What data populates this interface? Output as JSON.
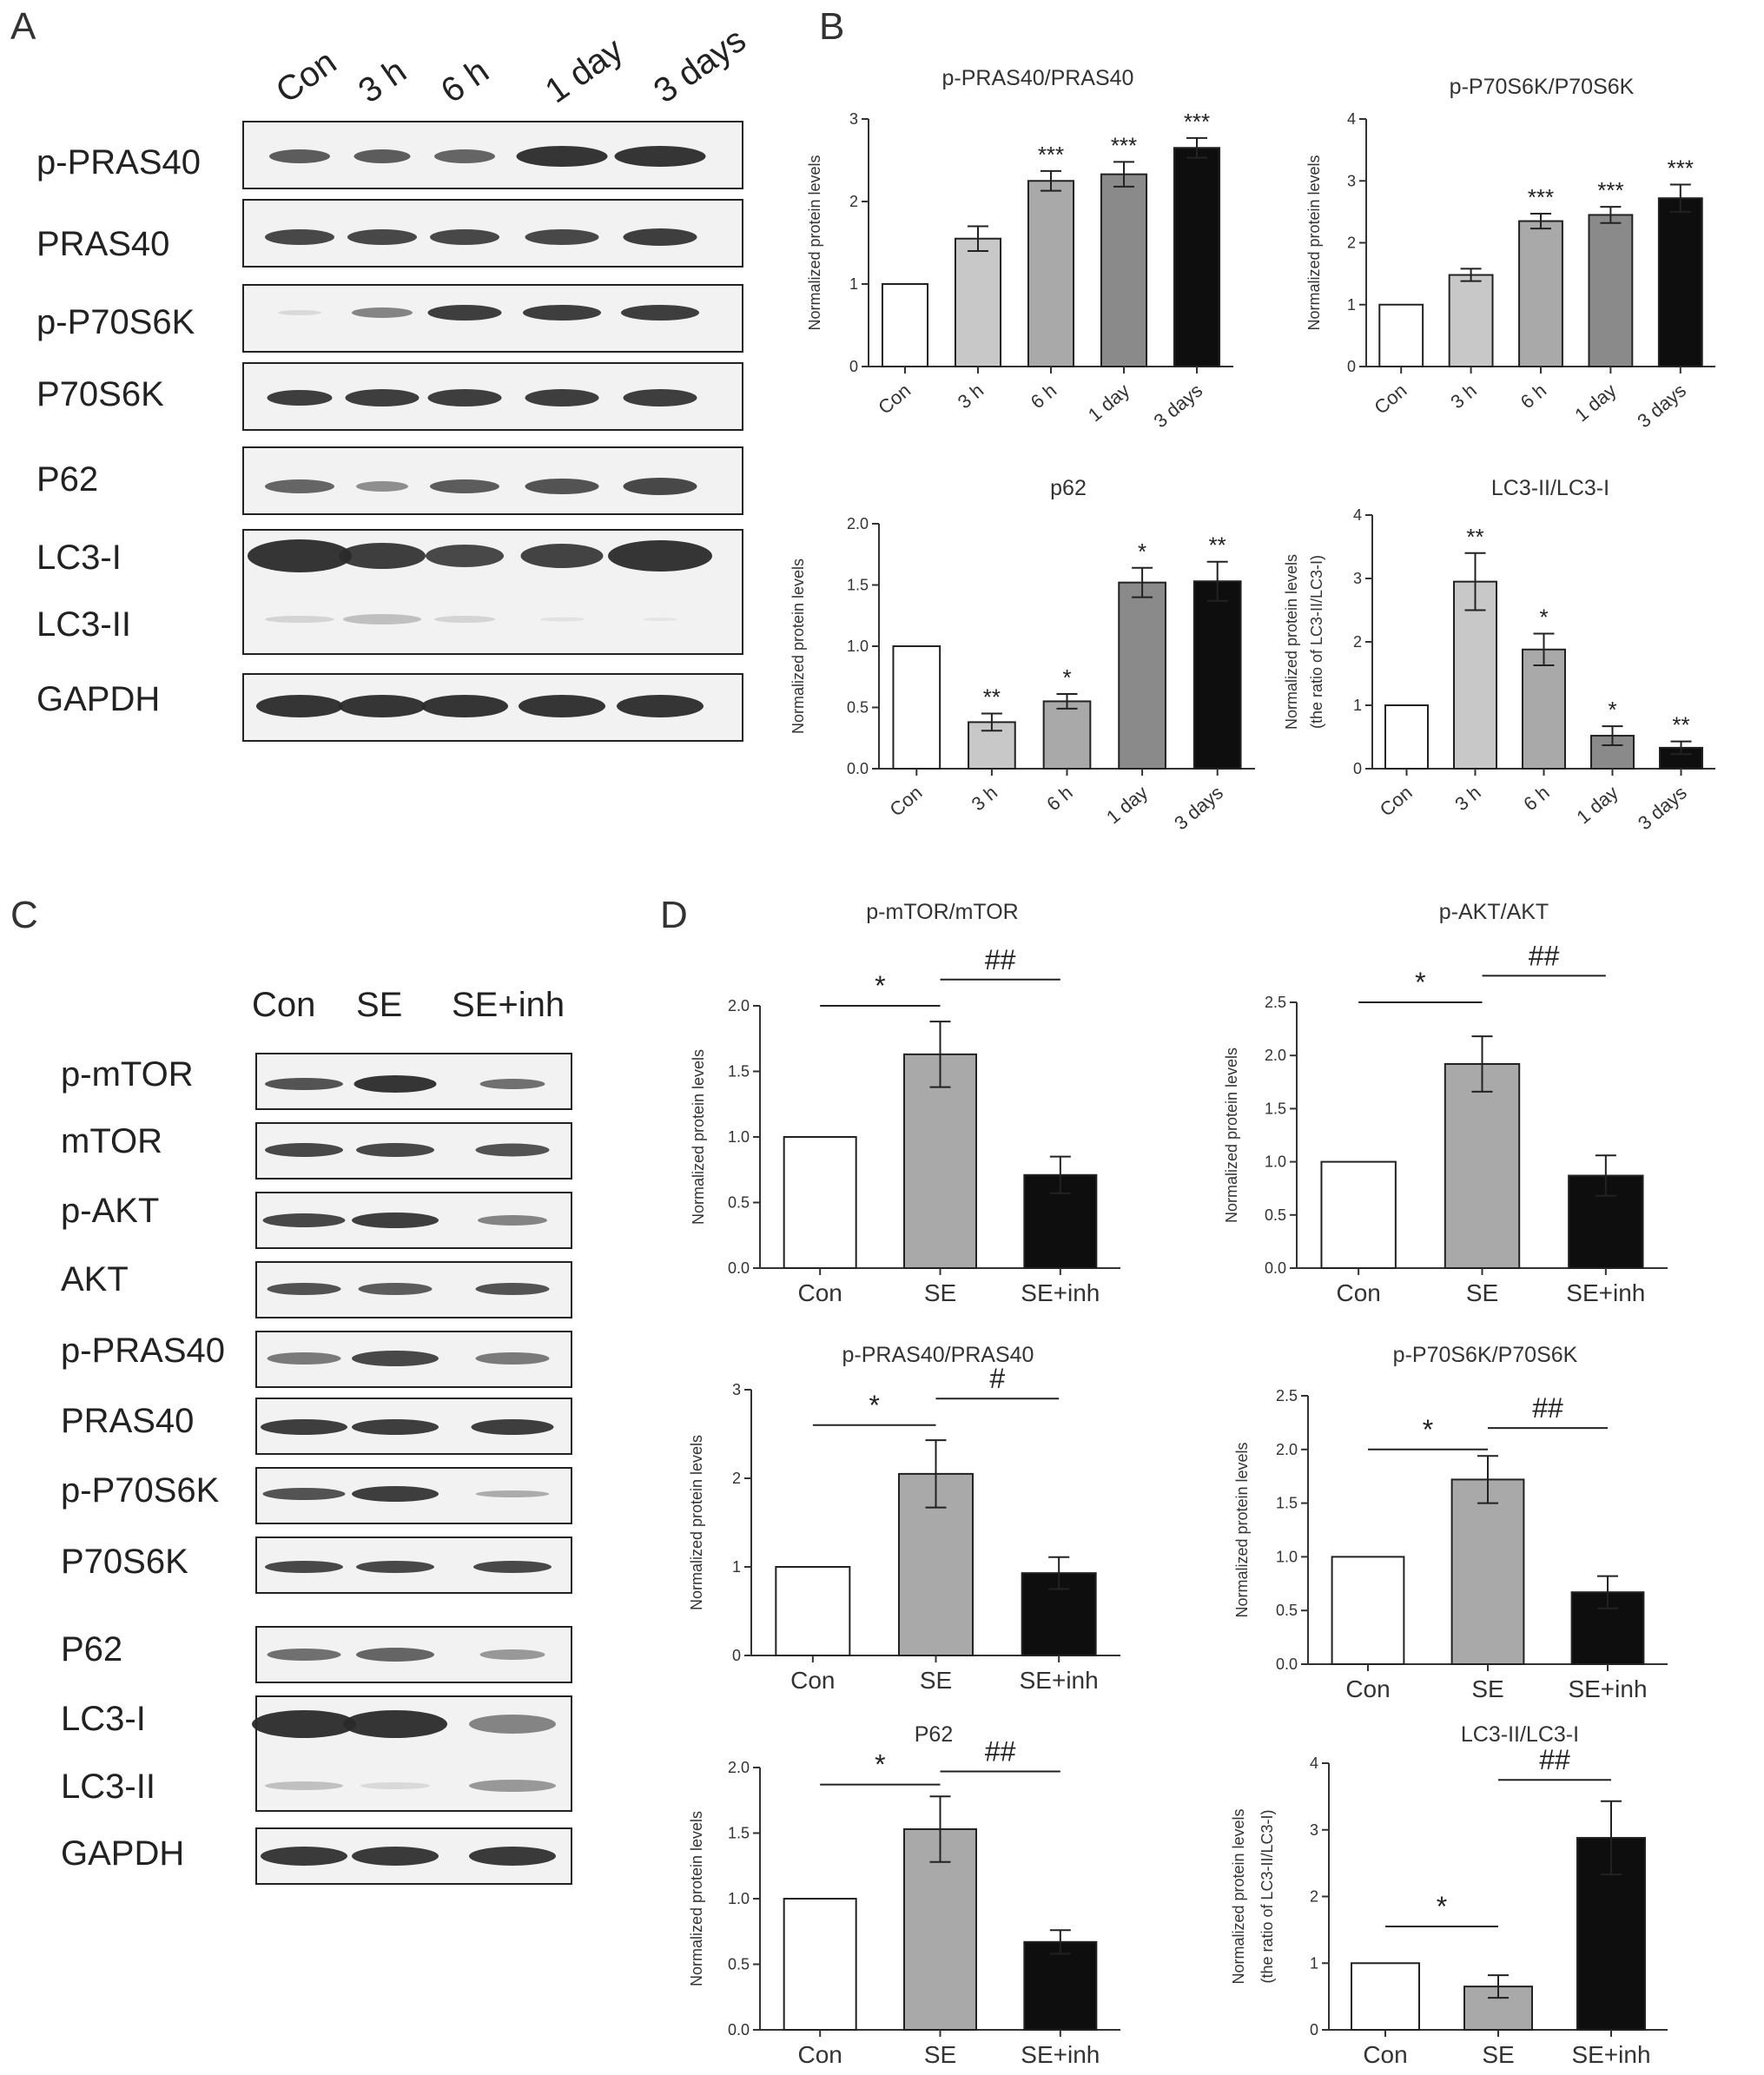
{
  "colors": {
    "con": "#ffffff",
    "t3h": "#c8c8c8",
    "t6h": "#a9a9a9",
    "t1d": "#8a8a8a",
    "t3d": "#0e0e0e",
    "se": "#a9a9a9",
    "seinh": "#0e0e0e",
    "axis": "#333333",
    "blot_bg": "#f2f2f2",
    "band": "#2a2a2a"
  },
  "panels": {
    "A": "A",
    "B": "B",
    "C": "C",
    "D": "D"
  },
  "blot_A": {
    "lanes": [
      "Con",
      "3 h",
      "6 h",
      "1 day",
      "3 days"
    ],
    "rows": [
      "p-PRAS40",
      "PRAS40",
      "p-P70S6K",
      "P70S6K",
      "P62",
      "LC3-I",
      "LC3-II",
      "GAPDH"
    ]
  },
  "blot_C": {
    "lanes": [
      "Con",
      "SE",
      "SE+inh"
    ],
    "rows": [
      "p-mTOR",
      "mTOR",
      "p-AKT",
      "AKT",
      "p-PRAS40",
      "PRAS40",
      "p-P70S6K",
      "P70S6K",
      "P62",
      "LC3-I",
      "LC3-II",
      "GAPDH"
    ]
  },
  "chart_data": [
    {
      "id": "B1",
      "type": "bar",
      "title": "p-PRAS40/PRAS40",
      "ylabel": "Normalized protein levels",
      "ylim": [
        0,
        3
      ],
      "yticks": [
        "0",
        "1",
        "2",
        "3"
      ],
      "categories": [
        "Con",
        "3 h",
        "6 h",
        "1 day",
        "3 days"
      ],
      "values": [
        1.0,
        1.55,
        2.25,
        2.33,
        2.65
      ],
      "errors": [
        0,
        0.15,
        0.12,
        0.15,
        0.12
      ],
      "annotations": [
        "",
        "",
        "***",
        "***",
        "***"
      ]
    },
    {
      "id": "B2",
      "type": "bar",
      "title": "p-P70S6K/P70S6K",
      "ylabel": "Normalized protein levels",
      "ylim": [
        0,
        4
      ],
      "yticks": [
        "0",
        "1",
        "2",
        "3",
        "4"
      ],
      "categories": [
        "Con",
        "3 h",
        "6 h",
        "1 day",
        "3 days"
      ],
      "values": [
        1.0,
        1.48,
        2.35,
        2.45,
        2.72
      ],
      "errors": [
        0,
        0.1,
        0.12,
        0.13,
        0.22
      ],
      "annotations": [
        "",
        "",
        "***",
        "***",
        "***"
      ]
    },
    {
      "id": "B3",
      "type": "bar",
      "title": "p62",
      "ylabel": "Normalized protein levels",
      "ylim": [
        0,
        2.0
      ],
      "yticks": [
        "0.0",
        "0.5",
        "1.0",
        "1.5",
        "2.0"
      ],
      "categories": [
        "Con",
        "3 h",
        "6 h",
        "1 day",
        "3 days"
      ],
      "values": [
        1.0,
        0.38,
        0.55,
        1.52,
        1.53
      ],
      "errors": [
        0,
        0.07,
        0.06,
        0.12,
        0.16
      ],
      "annotations": [
        "",
        "**",
        "*",
        "*",
        "**"
      ]
    },
    {
      "id": "B4",
      "type": "bar",
      "title": "LC3-II/LC3-I",
      "ylabel": "Normalized protein levels",
      "ylabel2": "(the ratio of LC3-II/LC3-I)",
      "ylim": [
        0,
        4
      ],
      "yticks": [
        "0",
        "1",
        "2",
        "3",
        "4"
      ],
      "categories": [
        "Con",
        "3 h",
        "6 h",
        "1 day",
        "3 days"
      ],
      "values": [
        1.0,
        2.95,
        1.88,
        0.52,
        0.33
      ],
      "errors": [
        0,
        0.45,
        0.25,
        0.15,
        0.1
      ],
      "annotations": [
        "",
        "**",
        "*",
        "*",
        "**"
      ]
    },
    {
      "id": "D1",
      "type": "bar",
      "title": "p-mTOR/mTOR",
      "ylabel": "Normalized protein levels",
      "ylim": [
        0,
        2.0
      ],
      "yticks": [
        "0.0",
        "0.5",
        "1.0",
        "1.5",
        "2.0"
      ],
      "categories": [
        "Con",
        "SE",
        "SE+inh"
      ],
      "values": [
        1.0,
        1.63,
        0.71
      ],
      "errors": [
        0,
        0.25,
        0.14
      ],
      "comparisons": [
        {
          "from": 0,
          "to": 1,
          "label": "*",
          "y": 2.0
        },
        {
          "from": 1,
          "to": 2,
          "label": "##",
          "y": 2.2
        }
      ]
    },
    {
      "id": "D2",
      "type": "bar",
      "title": "p-AKT/AKT",
      "ylabel": "Normalized protein levels",
      "ylim": [
        0,
        2.5
      ],
      "yticks": [
        "0.0",
        "0.5",
        "1.0",
        "1.5",
        "2.0",
        "2.5"
      ],
      "categories": [
        "Con",
        "SE",
        "SE+inh"
      ],
      "values": [
        1.0,
        1.92,
        0.87
      ],
      "errors": [
        0,
        0.26,
        0.19
      ],
      "comparisons": [
        {
          "from": 0,
          "to": 1,
          "label": "*",
          "y": 2.5
        },
        {
          "from": 1,
          "to": 2,
          "label": "##",
          "y": 2.75
        }
      ]
    },
    {
      "id": "D3",
      "type": "bar",
      "title": "p-PRAS40/PRAS40",
      "ylabel": "Normalized protein levels",
      "ylim": [
        0,
        3
      ],
      "yticks": [
        "0",
        "1",
        "2",
        "3"
      ],
      "categories": [
        "Con",
        "SE",
        "SE+inh"
      ],
      "values": [
        1.0,
        2.05,
        0.93
      ],
      "errors": [
        0,
        0.38,
        0.18
      ],
      "comparisons": [
        {
          "from": 0,
          "to": 1,
          "label": "*",
          "y": 2.6
        },
        {
          "from": 1,
          "to": 2,
          "label": "#",
          "y": 2.9
        }
      ]
    },
    {
      "id": "D4",
      "type": "bar",
      "title": "p-P70S6K/P70S6K",
      "ylabel": "Normalized protein levels",
      "ylim": [
        0,
        2.5
      ],
      "yticks": [
        "0.0",
        "0.5",
        "1.0",
        "1.5",
        "2.0",
        "2.5"
      ],
      "categories": [
        "Con",
        "SE",
        "SE+inh"
      ],
      "values": [
        1.0,
        1.72,
        0.67
      ],
      "errors": [
        0,
        0.22,
        0.15
      ],
      "comparisons": [
        {
          "from": 0,
          "to": 1,
          "label": "*",
          "y": 2.0
        },
        {
          "from": 1,
          "to": 2,
          "label": "##",
          "y": 2.2
        }
      ]
    },
    {
      "id": "D5",
      "type": "bar",
      "title": "P62",
      "ylabel": "Normalized protein levels",
      "ylim": [
        0,
        2.0
      ],
      "yticks": [
        "0.0",
        "0.5",
        "1.0",
        "1.5",
        "2.0"
      ],
      "categories": [
        "Con",
        "SE",
        "SE+inh"
      ],
      "values": [
        1.0,
        1.53,
        0.67
      ],
      "errors": [
        0,
        0.25,
        0.09
      ],
      "comparisons": [
        {
          "from": 0,
          "to": 1,
          "label": "*",
          "y": 1.87
        },
        {
          "from": 1,
          "to": 2,
          "label": "##",
          "y": 1.97
        }
      ]
    },
    {
      "id": "D6",
      "type": "bar",
      "title": "LC3-II/LC3-I",
      "ylabel": "Normalized protein levels",
      "ylabel2": "(the ratio of LC3-II/LC3-I)",
      "ylim": [
        0,
        4
      ],
      "yticks": [
        "0",
        "1",
        "2",
        "3",
        "4"
      ],
      "categories": [
        "Con",
        "SE",
        "SE+inh"
      ],
      "values": [
        1.0,
        0.65,
        2.88
      ],
      "errors": [
        0,
        0.17,
        0.55
      ],
      "comparisons": [
        {
          "from": 0,
          "to": 1,
          "label": "*",
          "y": 1.55
        },
        {
          "from": 1,
          "to": 2,
          "label": "##",
          "y": 3.75
        }
      ]
    }
  ]
}
